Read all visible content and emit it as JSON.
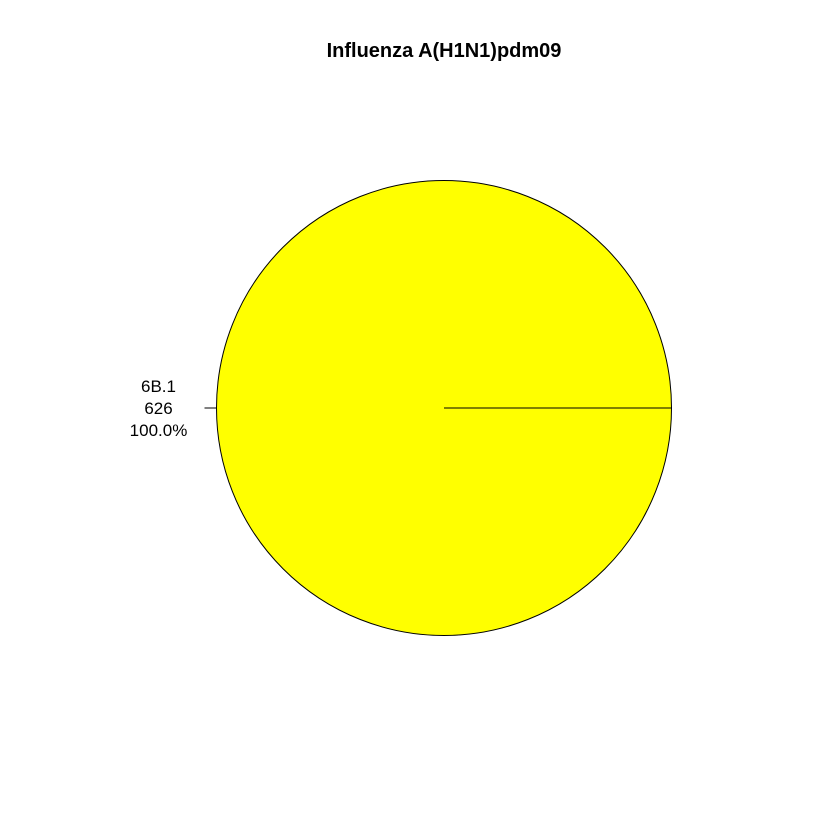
{
  "chart_data": {
    "type": "pie",
    "title": "Influenza A(H1N1)pdm09",
    "slices": [
      {
        "category": "6B.1",
        "value": 626,
        "percent": "100.0%",
        "color": "#FFFF00"
      }
    ]
  }
}
